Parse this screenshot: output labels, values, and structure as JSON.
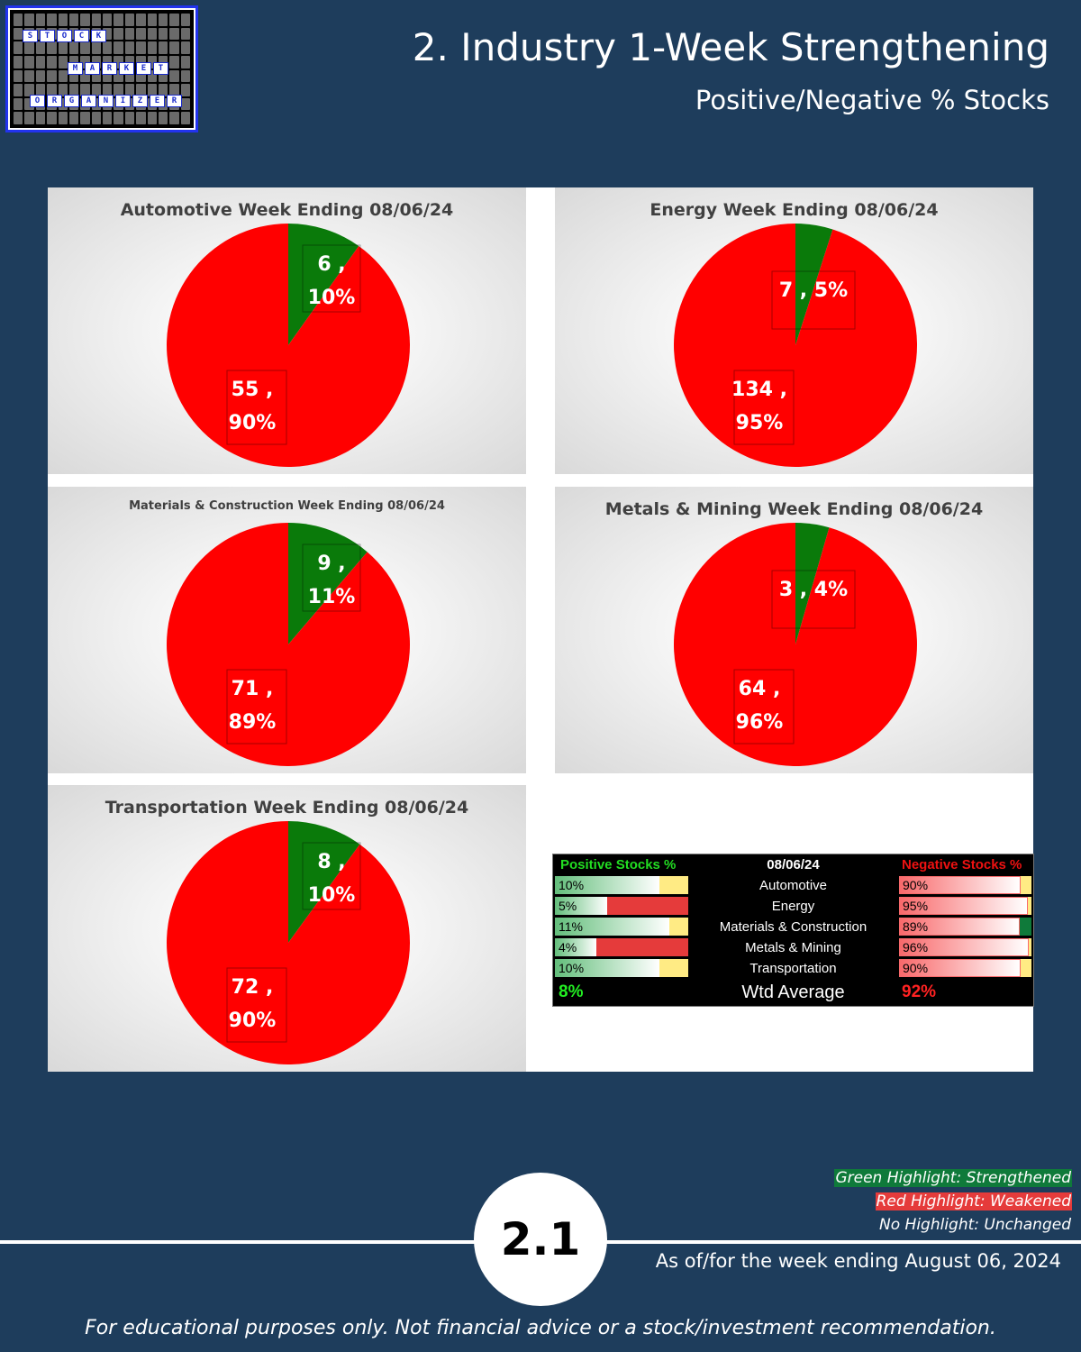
{
  "logo": {
    "words": [
      "STOCK",
      "MARKET",
      "ORGANIZER"
    ]
  },
  "header": {
    "title": "2. Industry 1-Week Strengthening",
    "subtitle": "Positive/Negative % Stocks"
  },
  "chart_data": [
    {
      "type": "pie",
      "title": "Automotive Week Ending 08/06/24",
      "categories": [
        "Positive",
        "Negative"
      ],
      "values": [
        6,
        55
      ],
      "labels": [
        "6 ,|10%",
        "55 ,|90%"
      ],
      "colors": [
        "#0a7a0a",
        "#ff0000"
      ]
    },
    {
      "type": "pie",
      "title": "Energy Week Ending 08/06/24",
      "categories": [
        "Positive",
        "Negative"
      ],
      "values": [
        7,
        134
      ],
      "labels": [
        "7 , 5%",
        "134 ,|95%"
      ],
      "colors": [
        "#0a7a0a",
        "#ff0000"
      ]
    },
    {
      "type": "pie",
      "title": "Materials & Construction Week Ending 08/06/24",
      "categories": [
        "Positive",
        "Negative"
      ],
      "values": [
        9,
        71
      ],
      "labels": [
        "9 ,|11%",
        "71 ,|89%"
      ],
      "colors": [
        "#0a7a0a",
        "#ff0000"
      ]
    },
    {
      "type": "pie",
      "title": "Metals & Mining  Week Ending 08/06/24",
      "categories": [
        "Positive",
        "Negative"
      ],
      "values": [
        3,
        64
      ],
      "labels": [
        "3 , 4%",
        "64 ,|96%"
      ],
      "colors": [
        "#0a7a0a",
        "#ff0000"
      ]
    },
    {
      "type": "pie",
      "title": "Transportation  Week Ending 08/06/24",
      "categories": [
        "Positive",
        "Negative"
      ],
      "values": [
        8,
        72
      ],
      "labels": [
        "8 ,|10%",
        "72 ,|90%"
      ],
      "colors": [
        "#0a7a0a",
        "#ff0000"
      ]
    }
  ],
  "table": {
    "header_positive": "Positive Stocks %",
    "header_date": "08/06/24",
    "header_negative": "Negative Stocks %",
    "rows": [
      {
        "pos": "10%",
        "name": "Automotive",
        "neg": "90%",
        "pos_value": 0.1,
        "neg_value": 0.9,
        "pos_status": "unchanged",
        "neg_status": "unchanged"
      },
      {
        "pos": "5%",
        "name": "Energy",
        "neg": "95%",
        "pos_value": 0.05,
        "neg_value": 0.95,
        "pos_status": "weakened",
        "neg_status": "unchanged"
      },
      {
        "pos": "11%",
        "name": "Materials & Construction",
        "neg": "89%",
        "pos_value": 0.11,
        "neg_value": 0.89,
        "pos_status": "unchanged",
        "neg_status": "strengthened"
      },
      {
        "pos": "4%",
        "name": "Metals & Mining",
        "neg": "96%",
        "pos_value": 0.04,
        "neg_value": 0.96,
        "pos_status": "weakened",
        "neg_status": "unchanged"
      },
      {
        "pos": "10%",
        "name": "Transportation",
        "neg": "90%",
        "pos_value": 0.1,
        "neg_value": 0.9,
        "pos_status": "unchanged",
        "neg_status": "unchanged"
      }
    ],
    "avg_pos": "8%",
    "avg_name": "Wtd Average",
    "avg_neg": "92%"
  },
  "legend": {
    "green": "Green Highlight: Strengthened",
    "red": "Red Highlight: Weakened",
    "none": "No Highlight: Unchanged"
  },
  "colors": {
    "green_highlight": "#0f7a3a",
    "red_highlight": "#e53b3b",
    "unchanged_cell": "#ffeb84"
  },
  "badge": "2.1",
  "as_of": "As of/for the week ending August 06, 2024",
  "footer": "For educational purposes only. Not financial advice or a stock/investment recommendation."
}
